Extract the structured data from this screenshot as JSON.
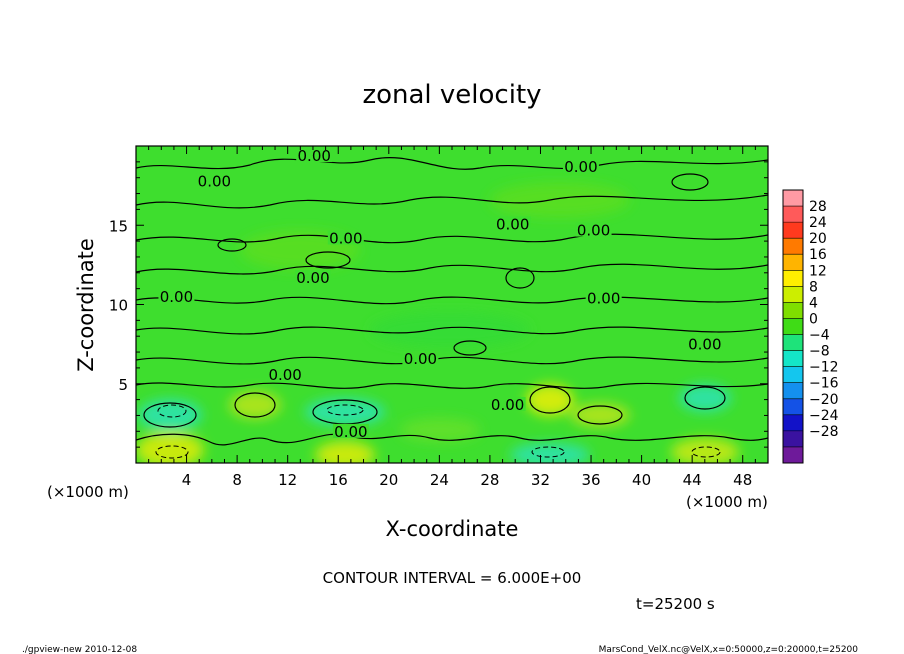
{
  "chart_data": {
    "type": "heatmap",
    "title": "zonal velocity",
    "xlabel": "X-coordinate",
    "ylabel": "Z-coordinate",
    "x_unit_left": "(×1000 m)",
    "x_unit_right": "(×1000 m)",
    "xlim": [
      0,
      50
    ],
    "ylim": [
      0,
      20
    ],
    "x_ticks": [
      4,
      8,
      12,
      16,
      20,
      24,
      28,
      32,
      36,
      40,
      44,
      48
    ],
    "y_ticks": [
      5,
      10,
      15
    ],
    "contour_interval_text": "CONTOUR INTERVAL = 6.000E+00",
    "time_text": "t=25200 s",
    "contour_labels": [
      {
        "text": "0.00",
        "x": 14.1,
        "y": 19.3
      },
      {
        "text": "0.00",
        "x": 6.2,
        "y": 17.7
      },
      {
        "text": "0.00",
        "x": 35.2,
        "y": 18.6
      },
      {
        "text": "0.00",
        "x": 36.2,
        "y": 14.6
      },
      {
        "text": "0.00",
        "x": 29.8,
        "y": 15.0
      },
      {
        "text": "0.00",
        "x": 16.6,
        "y": 14.1
      },
      {
        "text": "0.00",
        "x": 14.0,
        "y": 11.6
      },
      {
        "text": "0.00",
        "x": 3.2,
        "y": 10.4
      },
      {
        "text": "0.00",
        "x": 37.0,
        "y": 10.3
      },
      {
        "text": "0.00",
        "x": 45.0,
        "y": 7.4
      },
      {
        "text": "0.00",
        "x": 22.5,
        "y": 6.5
      },
      {
        "text": "0.00",
        "x": 11.8,
        "y": 5.5
      },
      {
        "text": "0.00",
        "x": 29.4,
        "y": 3.6
      },
      {
        "text": "0.00",
        "x": 17.0,
        "y": 1.9
      }
    ],
    "colorbar": {
      "labels": [
        "28",
        "24",
        "20",
        "16",
        "12",
        "8",
        "4",
        "0",
        "−4",
        "−8",
        "−12",
        "−16",
        "−20",
        "−24",
        "−28"
      ],
      "colors": [
        "#ff9aa4",
        "#ff5a5a",
        "#ff3a1e",
        "#ff7a00",
        "#ffb400",
        "#ffee00",
        "#ccee00",
        "#7fde00",
        "#3fdc16",
        "#1ee37a",
        "#14e6c8",
        "#14c6ee",
        "#1490ee",
        "#1452e6",
        "#1212c8",
        "#3a12a0",
        "#6e1a9a"
      ]
    }
  },
  "footer": {
    "left": "./gpview-new  2010-12-08",
    "right": "MarsCond_VelX.nc@VelX,x=0:50000,z=0:20000,t=25200"
  }
}
